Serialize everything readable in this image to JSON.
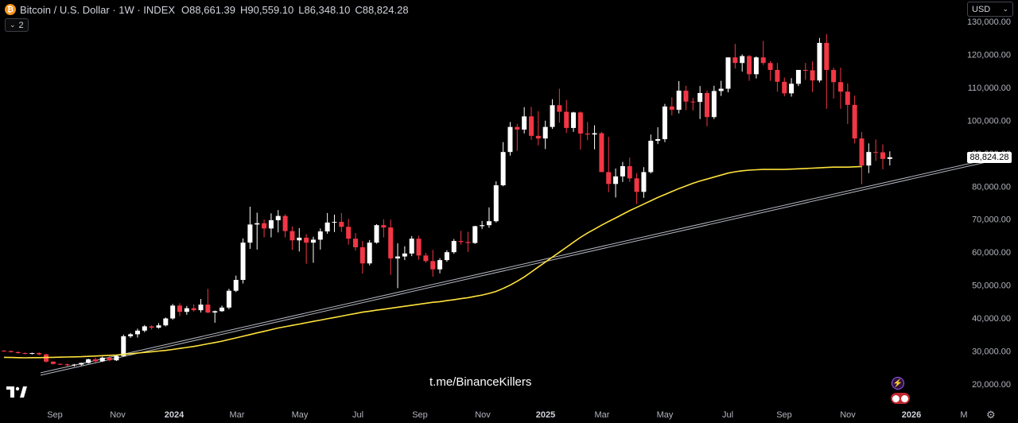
{
  "header": {
    "coin_glyph": "₿",
    "title": "Bitcoin / U.S. Dollar · 1W · INDEX",
    "open_label": "O",
    "open": "88,661.39",
    "high_label": "H",
    "high": "90,559.10",
    "low_label": "L",
    "low": "86,348.10",
    "close_label": "C",
    "close": "88,824.28"
  },
  "indicators_count": "2",
  "currency": {
    "selected": "USD",
    "icon": "chevron-down-icon"
  },
  "last_price_tag": "88,824.28",
  "watermark": "t.me/BinanceKillers",
  "colors": {
    "up": "#ffffff",
    "down": "#f23645",
    "ma": "#ffe33b",
    "trendline": "#b2b5be",
    "background": "#000000"
  },
  "chart_data": {
    "type": "candlestick",
    "title": "Bitcoin / U.S. Dollar · 1W · INDEX",
    "xlabel": "",
    "ylabel": "",
    "ylim": [
      12000,
      132000
    ],
    "y_ticks": [
      "130,000.00",
      "120,000.00",
      "110,000.00",
      "100,000.00",
      "90,000.00",
      "80,000.00",
      "70,000.00",
      "60,000.00",
      "50,000.00",
      "40,000.00",
      "30,000.00",
      "20,000.00"
    ],
    "x_ticks": [
      "Sep",
      "Nov",
      "2024",
      "Mar",
      "May",
      "Jul",
      "Sep",
      "Nov",
      "2025",
      "Mar",
      "May",
      "Jul",
      "Sep",
      "Nov",
      "2026",
      "M"
    ],
    "grid": false,
    "series": [
      {
        "type": "ohlc",
        "values": [
          [
            30100,
            30300,
            29800,
            30000
          ],
          [
            30000,
            30150,
            29600,
            29700
          ],
          [
            29700,
            29900,
            29200,
            29400
          ],
          [
            29400,
            29600,
            29000,
            29300
          ],
          [
            29300,
            29500,
            29000,
            29400
          ],
          [
            29400,
            29600,
            28700,
            29000
          ],
          [
            29000,
            29200,
            26500,
            26800
          ],
          [
            26800,
            26900,
            25900,
            26100
          ],
          [
            26100,
            26300,
            25800,
            26000
          ],
          [
            26000,
            26200,
            25400,
            25700
          ],
          [
            25700,
            26100,
            25300,
            25900
          ],
          [
            25900,
            26500,
            25600,
            26400
          ],
          [
            26400,
            27700,
            26200,
            27500
          ],
          [
            27500,
            28000,
            26600,
            26900
          ],
          [
            26900,
            28300,
            26700,
            28000
          ],
          [
            28000,
            28500,
            26900,
            27200
          ],
          [
            27200,
            28800,
            27000,
            28500
          ],
          [
            28500,
            35000,
            28300,
            34500
          ],
          [
            34500,
            35500,
            34000,
            35100
          ],
          [
            35100,
            36800,
            34100,
            36200
          ],
          [
            36200,
            37900,
            35700,
            37500
          ],
          [
            37500,
            37800,
            36500,
            37100
          ],
          [
            37100,
            38500,
            36800,
            37800
          ],
          [
            37800,
            40200,
            37500,
            39900
          ],
          [
            39900,
            44300,
            39500,
            43800
          ],
          [
            43800,
            44500,
            40600,
            41900
          ],
          [
            41900,
            43700,
            41000,
            43000
          ],
          [
            43000,
            44200,
            42000,
            42400
          ],
          [
            42400,
            45800,
            41700,
            44100
          ],
          [
            44100,
            48900,
            41500,
            41700
          ],
          [
            41700,
            42300,
            38600,
            42100
          ],
          [
            42100,
            43800,
            41900,
            43200
          ],
          [
            43200,
            48900,
            42700,
            48300
          ],
          [
            48300,
            52900,
            47900,
            51600
          ],
          [
            51600,
            64200,
            50500,
            62900
          ],
          [
            62900,
            73800,
            61000,
            68400
          ],
          [
            68400,
            72000,
            60800,
            68800
          ],
          [
            68800,
            69900,
            64500,
            67200
          ],
          [
            67200,
            71800,
            64500,
            69700
          ],
          [
            69700,
            72800,
            66000,
            71000
          ],
          [
            71000,
            71500,
            64500,
            66400
          ],
          [
            66400,
            67800,
            60700,
            63600
          ],
          [
            63600,
            67300,
            60200,
            64400
          ],
          [
            64400,
            65500,
            56500,
            62900
          ],
          [
            62900,
            64700,
            56800,
            63800
          ],
          [
            63800,
            67200,
            60800,
            66300
          ],
          [
            66300,
            71900,
            65600,
            69000
          ],
          [
            69000,
            71400,
            66100,
            69200
          ],
          [
            69200,
            71900,
            66100,
            67700
          ],
          [
            67700,
            70100,
            62300,
            64100
          ],
          [
            64100,
            65800,
            60500,
            61500
          ],
          [
            61500,
            63400,
            53500,
            56600
          ],
          [
            56600,
            63700,
            56000,
            62900
          ],
          [
            62900,
            68500,
            62600,
            68200
          ],
          [
            68200,
            70000,
            64500,
            67500
          ],
          [
            67500,
            69900,
            53100,
            58100
          ],
          [
            58100,
            62700,
            49100,
            58700
          ],
          [
            58700,
            61800,
            57600,
            59600
          ],
          [
            59600,
            64900,
            58800,
            64100
          ],
          [
            64100,
            65000,
            57700,
            59000
          ],
          [
            59000,
            59800,
            56800,
            57300
          ],
          [
            57300,
            60700,
            52600,
            54800
          ],
          [
            54800,
            58200,
            53600,
            57600
          ],
          [
            57600,
            60600,
            57100,
            60000
          ],
          [
            60000,
            64000,
            59500,
            63400
          ],
          [
            63400,
            66500,
            62300,
            63100
          ],
          [
            63100,
            66200,
            60100,
            62800
          ],
          [
            62800,
            68000,
            62500,
            67900
          ],
          [
            67900,
            69500,
            67000,
            68200
          ],
          [
            68200,
            73600,
            67400,
            69400
          ],
          [
            69400,
            81500,
            69000,
            80300
          ],
          [
            80300,
            93400,
            80000,
            90400
          ],
          [
            90400,
            99500,
            89300,
            98000
          ],
          [
            98000,
            98900,
            90800,
            97200
          ],
          [
            97200,
            104000,
            96000,
            101200
          ],
          [
            101200,
            104100,
            94100,
            95300
          ],
          [
            95300,
            102800,
            92400,
            94500
          ],
          [
            94500,
            99900,
            91300,
            98000
          ],
          [
            98000,
            106400,
            97400,
            104600
          ],
          [
            104600,
            109600,
            99300,
            102600
          ],
          [
            102600,
            106200,
            96200,
            97700
          ],
          [
            97700,
            102600,
            96500,
            102400
          ],
          [
            102400,
            102700,
            91100,
            96000
          ],
          [
            96000,
            99500,
            94000,
            95700
          ],
          [
            95700,
            98500,
            91200,
            96100
          ],
          [
            96100,
            96500,
            86600,
            84300
          ],
          [
            84300,
            95000,
            78200,
            80700
          ],
          [
            80700,
            85400,
            76600,
            83000
          ],
          [
            83000,
            87400,
            81300,
            86100
          ],
          [
            86100,
            88700,
            81300,
            82400
          ],
          [
            82400,
            84000,
            74600,
            78300
          ],
          [
            78300,
            85800,
            76500,
            84300
          ],
          [
            84300,
            95700,
            83900,
            93800
          ],
          [
            93800,
            97900,
            92800,
            94300
          ],
          [
            94300,
            105000,
            93400,
            104200
          ],
          [
            104200,
            107000,
            101500,
            103200
          ],
          [
            103200,
            111900,
            102100,
            109000
          ],
          [
            109000,
            110500,
            103100,
            105700
          ],
          [
            105700,
            106800,
            103000,
            105600
          ],
          [
            105600,
            110400,
            100400,
            108300
          ],
          [
            108300,
            109000,
            98200,
            101000
          ],
          [
            101000,
            110500,
            100400,
            108900
          ],
          [
            108900,
            112000,
            107400,
            109600
          ],
          [
            109600,
            119000,
            108500,
            119100
          ],
          [
            119100,
            123200,
            115700,
            117400
          ],
          [
            117400,
            120000,
            114800,
            119500
          ],
          [
            119500,
            119800,
            112000,
            114000
          ],
          [
            114000,
            119400,
            112700,
            119100
          ],
          [
            119100,
            124100,
            116800,
            117400
          ],
          [
            117400,
            118000,
            112000,
            115300
          ],
          [
            115300,
            117400,
            108700,
            111700
          ],
          [
            111700,
            113000,
            107300,
            108200
          ],
          [
            108200,
            112800,
            107200,
            111100
          ],
          [
            111100,
            113400,
            110400,
            115300
          ],
          [
            115300,
            117400,
            112300,
            115200
          ],
          [
            115200,
            117900,
            108600,
            112100
          ],
          [
            112100,
            125000,
            111500,
            123500
          ],
          [
            123500,
            126200,
            103500,
            115300
          ],
          [
            115300,
            116000,
            106600,
            111600
          ],
          [
            111600,
            116000,
            103500,
            108700
          ],
          [
            108700,
            111200,
            98900,
            104700
          ],
          [
            104700,
            107500,
            93000,
            94500
          ],
          [
            94500,
            96500,
            80600,
            86300
          ],
          [
            86300,
            93000,
            84000,
            90400
          ],
          [
            90400,
            94200,
            87700,
            90300
          ],
          [
            90300,
            92700,
            85200,
            88300
          ],
          [
            88300,
            90600,
            86300,
            88800
          ]
        ]
      },
      {
        "type": "line",
        "values": [
          28100,
          28050,
          28000,
          27950,
          28000,
          28020,
          28050,
          28100,
          28150,
          28200,
          28250,
          28300,
          28400,
          28500,
          28600,
          28700,
          28800,
          29000,
          29200,
          29400,
          29600,
          29800,
          30000,
          30200,
          30500,
          30800,
          31100,
          31400,
          31800,
          32200,
          32600,
          33000,
          33500,
          34000,
          34500,
          35000,
          35500,
          36000,
          36500,
          37000,
          37400,
          37800,
          38200,
          38600,
          39000,
          39400,
          39800,
          40200,
          40600,
          41000,
          41400,
          41800,
          42100,
          42400,
          42700,
          43000,
          43300,
          43600,
          43900,
          44200,
          44500,
          44800,
          45000,
          45300,
          45600,
          45900,
          46200,
          46600,
          47000,
          47500,
          48100,
          49000,
          50000,
          51200,
          52500,
          54000,
          55500,
          57000,
          58500,
          60000,
          61500,
          63000,
          64500,
          65800,
          67000,
          68200,
          69300,
          70400,
          71500,
          72600,
          73600,
          74600,
          75600,
          76600,
          77500,
          78400,
          79300,
          80100,
          80900,
          81600,
          82200,
          82800,
          83400,
          84000,
          84400,
          84700,
          84900,
          85000,
          85100,
          85100,
          85100,
          85100,
          85200,
          85300,
          85400,
          85500,
          85600,
          85700,
          85800,
          85800,
          85800,
          85900,
          86000
        ]
      },
      {
        "type": "trendline",
        "values": [
          [
            0,
            23400
          ],
          [
            142,
            89000
          ]
        ]
      }
    ]
  }
}
